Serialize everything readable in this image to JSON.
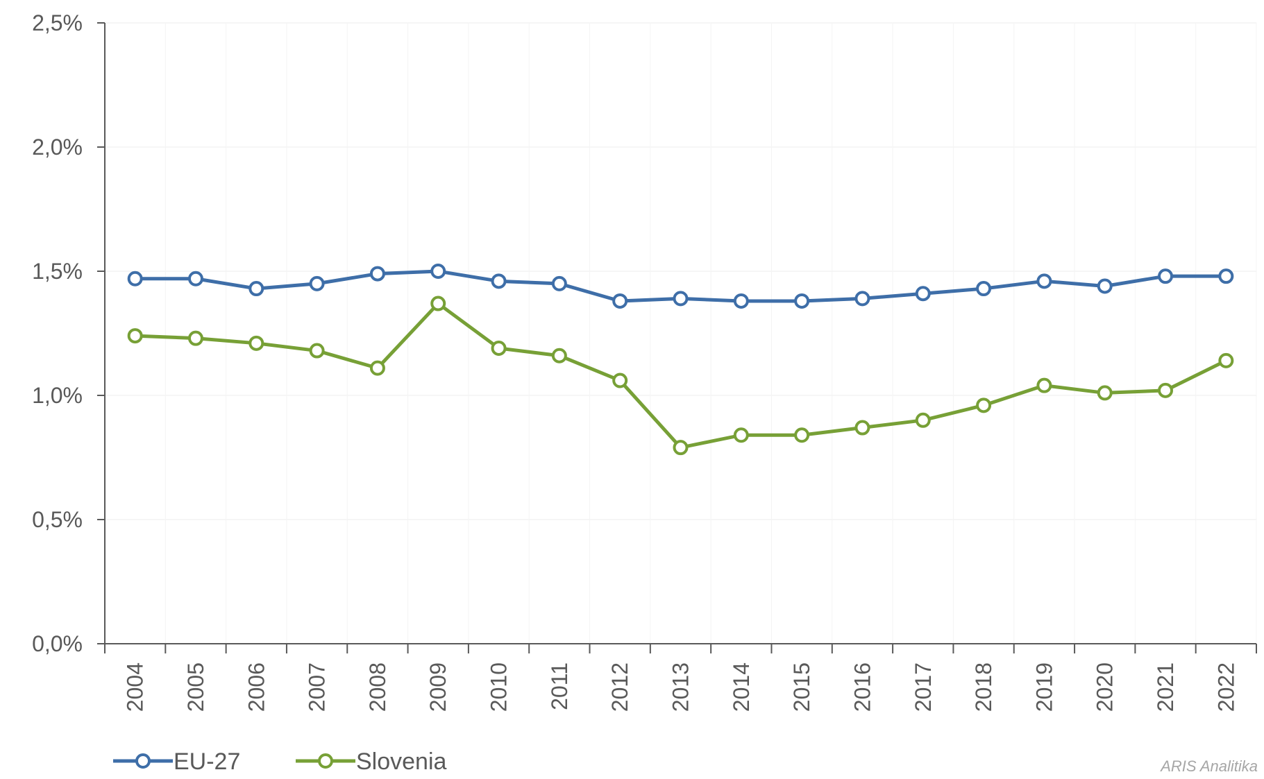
{
  "chart_data": {
    "type": "line",
    "title": "",
    "xlabel": "",
    "ylabel": "",
    "categories": [
      "2004",
      "2005",
      "2006",
      "2007",
      "2008",
      "2009",
      "2010",
      "2011",
      "2012",
      "2013",
      "2014",
      "2015",
      "2016",
      "2017",
      "2018",
      "2019",
      "2020",
      "2021",
      "2022"
    ],
    "series": [
      {
        "name": "EU-27",
        "color": "#3e6ea8",
        "values": [
          1.47,
          1.47,
          1.43,
          1.45,
          1.49,
          1.5,
          1.46,
          1.45,
          1.38,
          1.39,
          1.38,
          1.38,
          1.39,
          1.41,
          1.43,
          1.46,
          1.44,
          1.48,
          1.48
        ]
      },
      {
        "name": "Slovenia",
        "color": "#77a036",
        "values": [
          1.24,
          1.23,
          1.21,
          1.18,
          1.11,
          1.37,
          1.19,
          1.16,
          1.06,
          0.79,
          0.84,
          0.84,
          0.87,
          0.9,
          0.96,
          1.04,
          1.01,
          1.02,
          1.14
        ]
      }
    ],
    "ylim": [
      0,
      2.5
    ],
    "yticks": [
      0,
      0.5,
      1.0,
      1.5,
      2.0,
      2.5
    ],
    "ytick_labels": [
      "0,0%",
      "0,5%",
      "1,0%",
      "1,5%",
      "2,0%",
      "2,5%"
    ],
    "grid": true,
    "legend_position": "bottom-left",
    "source_credit": "ARIS Analitika"
  }
}
